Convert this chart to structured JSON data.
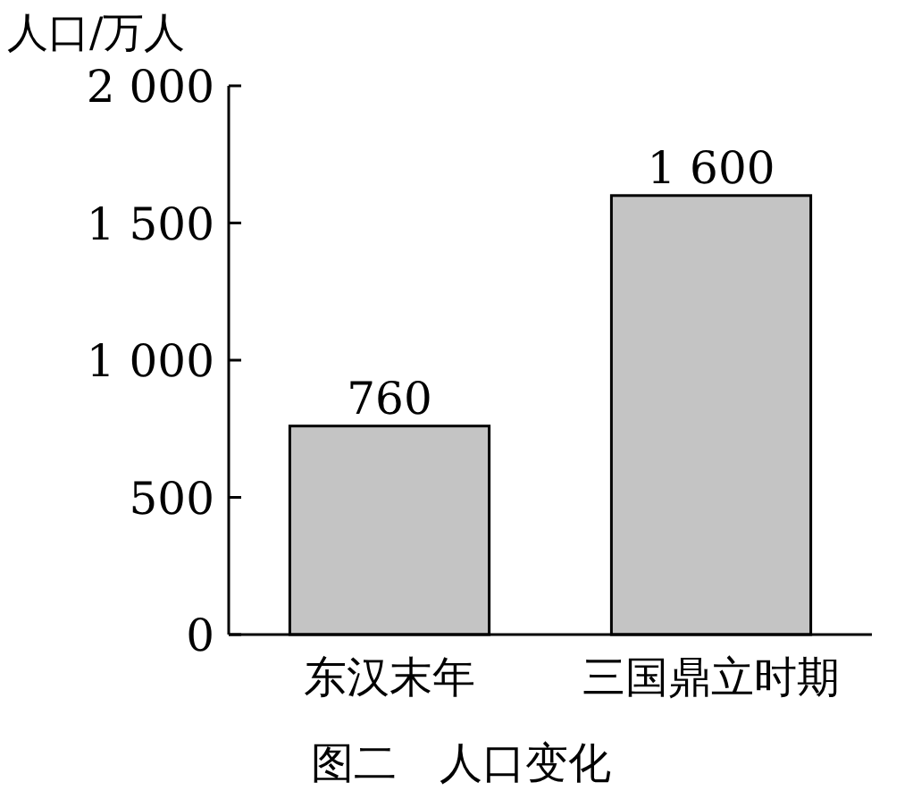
{
  "chart_data": {
    "type": "bar",
    "title": "图二　人口变化",
    "ylabel": "人口/万人",
    "categories": [
      "东汉末年",
      "三国鼎立时期"
    ],
    "values": [
      760,
      1600
    ],
    "color": "#c4c4c4",
    "ylim": [
      0,
      2000
    ],
    "yticks": [
      0,
      500,
      {
        "value": 1000,
        "label": "1 000"
      },
      {
        "value": 1500,
        "label": "1 500"
      },
      {
        "value": 2000,
        "label": "2 000"
      }
    ],
    "value_labels": [
      "760",
      "1 600"
    ]
  }
}
